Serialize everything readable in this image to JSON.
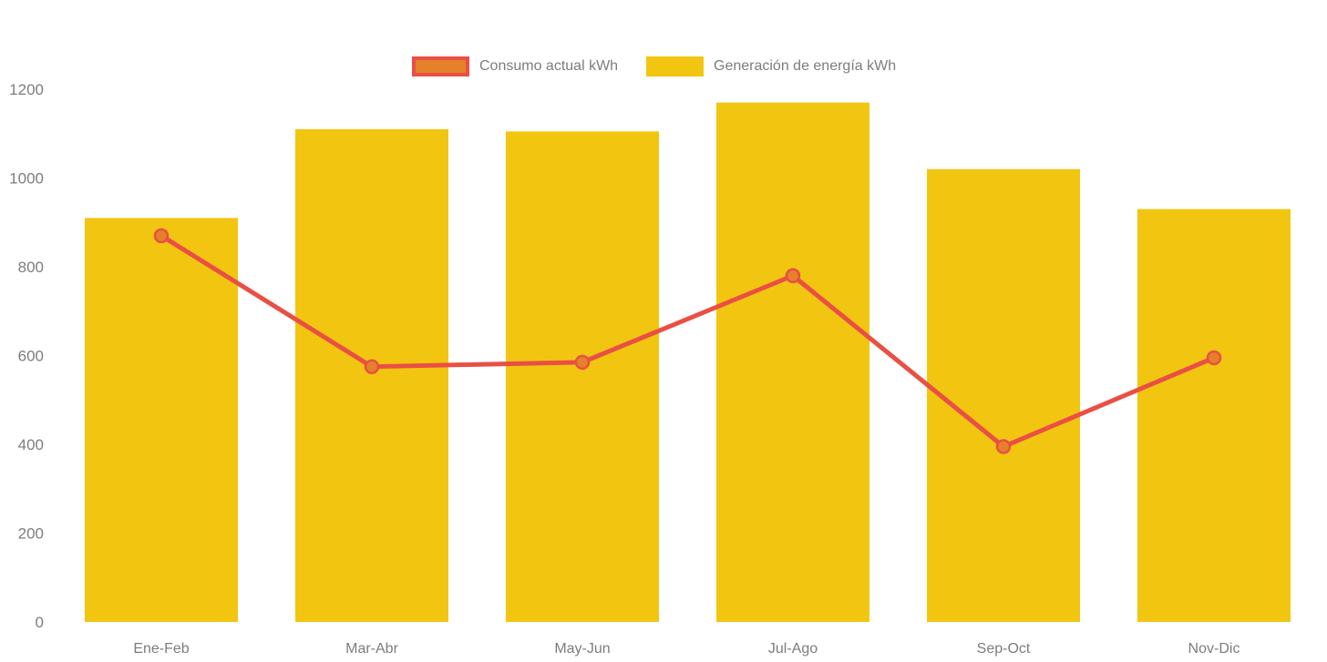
{
  "chart_data": {
    "type": "combo-bar-line",
    "categories": [
      "Ene-Feb",
      "Mar-Abr",
      "May-Jun",
      "Jul-Ago",
      "Sep-Oct",
      "Nov-Dic"
    ],
    "series": [
      {
        "name": "Consumo actual kWh",
        "type": "line",
        "values": [
          870,
          575,
          585,
          780,
          395,
          595
        ]
      },
      {
        "name": "Generación de energía kWh",
        "type": "bar",
        "values": [
          910,
          1110,
          1105,
          1170,
          1020,
          930
        ]
      }
    ],
    "title": "",
    "xlabel": "",
    "ylabel": "",
    "ylim": [
      0,
      1200
    ],
    "yticks": [
      0,
      200,
      400,
      600,
      800,
      1000,
      1200
    ],
    "grid": false,
    "legend_position": "top-center",
    "colors": {
      "bar_fill": "#F2C511",
      "line_stroke": "#EA4F44",
      "marker_fill": "#E5802B",
      "marker_stroke": "#EA4F44",
      "legend_consumo_fill": "#E5802B",
      "legend_consumo_border": "#EA4F44",
      "axis_text": "#7D7D7D"
    }
  }
}
